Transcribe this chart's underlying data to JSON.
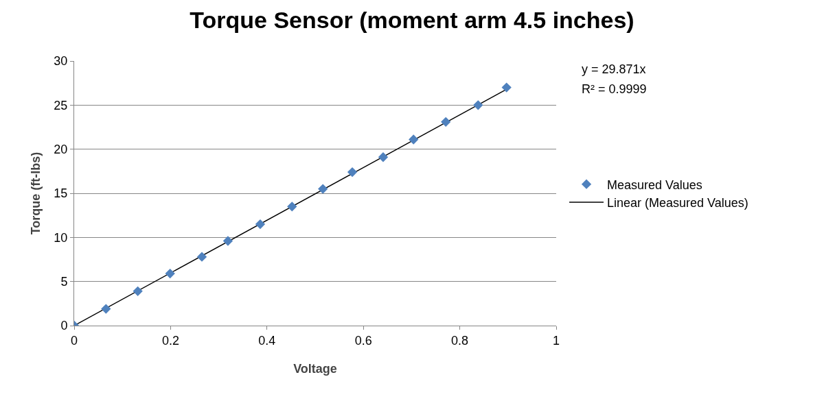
{
  "chart_data": {
    "type": "scatter",
    "title": "Torque Sensor (moment arm 4.5 inches)",
    "xlabel": "Voltage",
    "ylabel": "Torque (ft-lbs)",
    "series": [
      {
        "name": "Measured Values",
        "color": "#4f81bd",
        "marker": "diamond",
        "x": [
          0,
          0.066,
          0.132,
          0.199,
          0.265,
          0.319,
          0.386,
          0.452,
          0.516,
          0.577,
          0.641,
          0.704,
          0.771,
          0.838,
          0.897
        ],
        "values": [
          0,
          1.9,
          3.9,
          5.9,
          7.8,
          9.6,
          11.5,
          13.5,
          15.5,
          17.4,
          19.1,
          21.1,
          23.1,
          25.0,
          27.0
        ]
      },
      {
        "name": "Linear (Measured Values)",
        "type": "line",
        "color": "#000000",
        "marker": "none",
        "line_style": "solid",
        "x": [
          0,
          0.9
        ],
        "values": [
          0,
          26.88
        ]
      }
    ],
    "xlim": [
      0,
      1
    ],
    "xticks": [
      0,
      0.2,
      0.4,
      0.6,
      0.8,
      1
    ],
    "ylim": [
      0,
      30
    ],
    "yticks": [
      0,
      5,
      10,
      15,
      20,
      25,
      30
    ],
    "grid": "y",
    "legend": "right",
    "annotations": [
      "y = 29.871x",
      "R² = 0.9999"
    ]
  }
}
